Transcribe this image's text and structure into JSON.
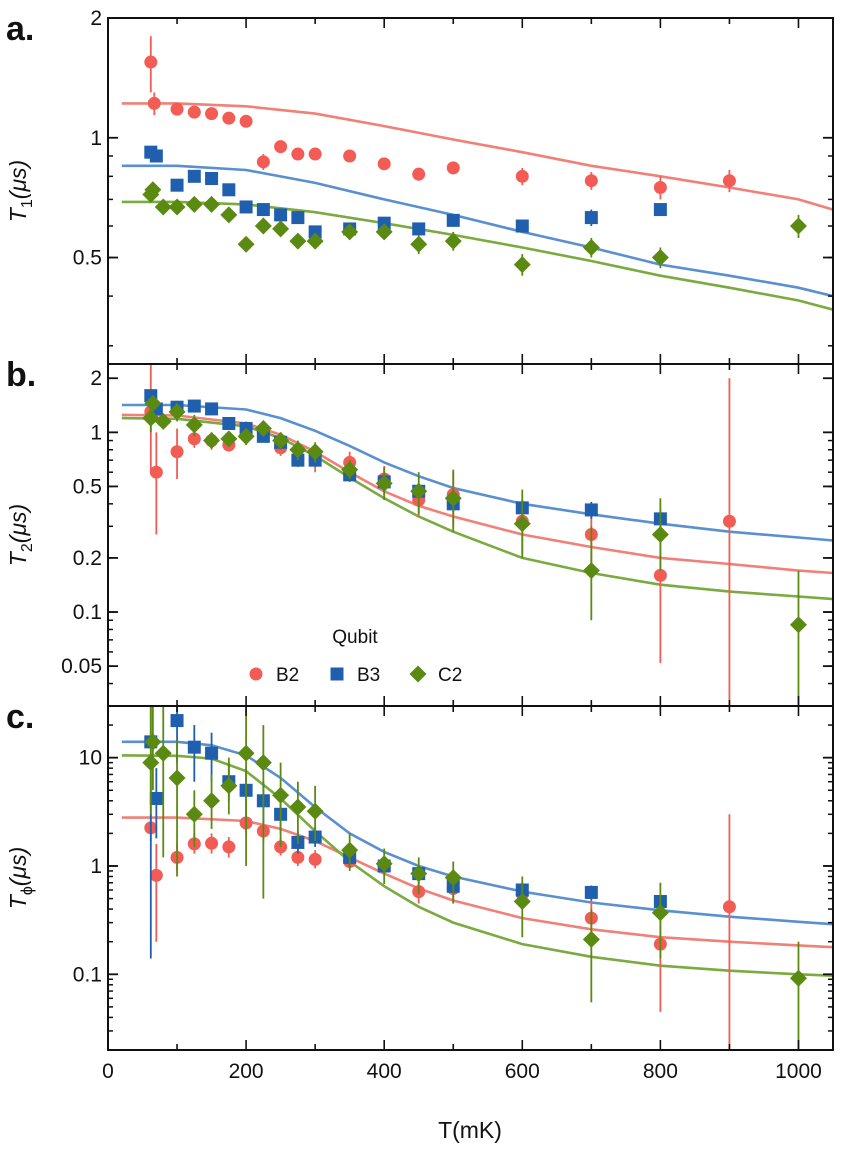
{
  "colors": {
    "B2": "#f25c54",
    "B3": "#1f5fae",
    "C2": "#5b8a13",
    "fit_B2": "#f08078",
    "fit_B3": "#5a8fd0",
    "fit_C2": "#7aaa40"
  },
  "legend": {
    "title": "Qubit",
    "entries": [
      "B2",
      "B3",
      "C2"
    ],
    "placement": "bottom-center of panel b"
  },
  "xaxis": {
    "label": "T(mK)",
    "ticks": [
      0,
      200,
      400,
      600,
      800,
      1000
    ],
    "tick_labels": [
      "0",
      "200",
      "400",
      "600",
      "800",
      "1000"
    ],
    "range": [
      0,
      1050
    ]
  },
  "chart_data": [
    {
      "panel": "a.",
      "type": "scatter",
      "ylabel_symbol": "T",
      "ylabel_sub": "1",
      "ylabel_unit": "(μs)",
      "yscale": "log",
      "ylim": [
        0.27,
        2.0
      ],
      "yticks": [
        0.5,
        1,
        2
      ],
      "ytick_labels": [
        "0.5",
        "1",
        "2"
      ],
      "series": [
        {
          "name": "B2",
          "marker": "circle",
          "x": [
            62,
            67,
            100,
            125,
            150,
            175,
            200,
            225,
            250,
            275,
            300,
            350,
            400,
            450,
            500,
            600,
            700,
            800,
            900
          ],
          "y": [
            1.55,
            1.22,
            1.18,
            1.16,
            1.15,
            1.12,
            1.1,
            0.87,
            0.95,
            0.91,
            0.91,
            0.9,
            0.86,
            0.81,
            0.84,
            0.8,
            0.78,
            0.75,
            0.78
          ],
          "err": [
            0.25,
            0.08,
            0.04,
            0.03,
            0.03,
            0.03,
            0.03,
            0.04,
            0.03,
            0.03,
            0.03,
            0.03,
            0.03,
            0.03,
            0.03,
            0.04,
            0.04,
            0.05,
            0.05
          ]
        },
        {
          "name": "B3",
          "marker": "square",
          "x": [
            62,
            70,
            100,
            125,
            150,
            175,
            200,
            225,
            250,
            275,
            300,
            350,
            400,
            450,
            500,
            600,
            700,
            800
          ],
          "y": [
            0.92,
            0.9,
            0.76,
            0.8,
            0.79,
            0.74,
            0.67,
            0.66,
            0.64,
            0.63,
            0.58,
            0.59,
            0.61,
            0.59,
            0.62,
            0.6,
            0.63,
            0.66
          ],
          "err": [
            0.02,
            0.02,
            0.02,
            0.02,
            0.02,
            0.02,
            0.02,
            0.02,
            0.02,
            0.02,
            0.02,
            0.02,
            0.02,
            0.02,
            0.02,
            0.02,
            0.03,
            0.02
          ]
        },
        {
          "name": "C2",
          "marker": "diamond",
          "x": [
            62,
            65,
            80,
            100,
            125,
            150,
            175,
            200,
            225,
            250,
            275,
            300,
            350,
            400,
            450,
            500,
            600,
            700,
            800,
            1000
          ],
          "y": [
            0.72,
            0.74,
            0.67,
            0.67,
            0.68,
            0.68,
            0.64,
            0.54,
            0.6,
            0.59,
            0.55,
            0.55,
            0.58,
            0.58,
            0.54,
            0.55,
            0.48,
            0.53,
            0.5,
            0.6
          ],
          "err": [
            0.02,
            0.02,
            0.02,
            0.02,
            0.02,
            0.02,
            0.02,
            0.02,
            0.02,
            0.02,
            0.02,
            0.02,
            0.02,
            0.02,
            0.03,
            0.03,
            0.03,
            0.03,
            0.03,
            0.04
          ]
        }
      ],
      "fits": [
        {
          "name": "B2",
          "x": [
            20,
            100,
            200,
            300,
            400,
            500,
            600,
            700,
            800,
            900,
            1000,
            1050
          ],
          "y": [
            1.22,
            1.22,
            1.2,
            1.15,
            1.07,
            0.99,
            0.92,
            0.85,
            0.8,
            0.75,
            0.7,
            0.66
          ]
        },
        {
          "name": "B3",
          "x": [
            20,
            100,
            200,
            300,
            400,
            500,
            600,
            700,
            800,
            900,
            1000,
            1050
          ],
          "y": [
            0.85,
            0.85,
            0.83,
            0.77,
            0.7,
            0.64,
            0.58,
            0.53,
            0.48,
            0.45,
            0.42,
            0.4
          ]
        },
        {
          "name": "C2",
          "x": [
            20,
            100,
            200,
            300,
            400,
            500,
            600,
            700,
            800,
            900,
            1000,
            1050
          ],
          "y": [
            0.69,
            0.69,
            0.68,
            0.65,
            0.61,
            0.57,
            0.53,
            0.49,
            0.45,
            0.42,
            0.39,
            0.37
          ]
        }
      ]
    },
    {
      "panel": "b.",
      "type": "scatter",
      "ylabel_symbol": "T",
      "ylabel_sub": "2",
      "ylabel_unit": "(μs)",
      "yscale": "log",
      "ylim": [
        0.03,
        2.4
      ],
      "yticks": [
        0.05,
        0.1,
        0.2,
        0.5,
        1,
        2
      ],
      "ytick_labels": [
        "0.05",
        "0.1",
        "0.2",
        "0.5",
        "1",
        "2"
      ],
      "series": [
        {
          "name": "B2",
          "marker": "circle",
          "x": [
            62,
            70,
            100,
            125,
            150,
            175,
            200,
            225,
            250,
            275,
            300,
            350,
            400,
            450,
            500,
            600,
            700,
            800,
            900
          ],
          "y": [
            1.3,
            0.6,
            0.78,
            0.92,
            0.9,
            0.85,
            1.05,
            1.0,
            0.82,
            0.72,
            0.7,
            0.68,
            0.55,
            0.42,
            0.45,
            0.32,
            0.27,
            0.16,
            0.32
          ],
          "elo": [
            0.6,
            0.27,
            0.55,
            0.82,
            0.8,
            0.78,
            0.95,
            0.9,
            0.74,
            0.64,
            0.6,
            0.58,
            0.45,
            0.34,
            0.3,
            0.21,
            0.16,
            0.052,
            0.03
          ],
          "ehi": [
            2.4,
            1.0,
            1.05,
            1.02,
            1.0,
            0.95,
            1.15,
            1.1,
            0.9,
            0.8,
            0.8,
            0.78,
            0.65,
            0.5,
            0.6,
            0.42,
            0.36,
            0.26,
            2.0
          ]
        },
        {
          "name": "B3",
          "marker": "square",
          "x": [
            62,
            70,
            100,
            125,
            150,
            175,
            200,
            225,
            250,
            275,
            300,
            350,
            400,
            450,
            500,
            600,
            700,
            800
          ],
          "y": [
            1.6,
            1.35,
            1.38,
            1.4,
            1.35,
            1.12,
            1.05,
            0.95,
            0.88,
            0.7,
            0.7,
            0.58,
            0.53,
            0.47,
            0.4,
            0.38,
            0.37,
            0.33
          ],
          "elo": [
            1.5,
            1.28,
            1.32,
            1.34,
            1.29,
            1.06,
            0.99,
            0.89,
            0.82,
            0.65,
            0.65,
            0.53,
            0.49,
            0.43,
            0.36,
            0.34,
            0.33,
            0.29
          ],
          "ehi": [
            1.72,
            1.42,
            1.44,
            1.46,
            1.41,
            1.18,
            1.11,
            1.01,
            0.94,
            0.75,
            0.75,
            0.63,
            0.57,
            0.51,
            0.44,
            0.42,
            0.41,
            0.37
          ]
        },
        {
          "name": "C2",
          "marker": "diamond",
          "x": [
            62,
            65,
            80,
            100,
            125,
            150,
            175,
            200,
            225,
            250,
            275,
            300,
            350,
            400,
            450,
            500,
            600,
            700,
            800,
            1000
          ],
          "y": [
            1.2,
            1.45,
            1.15,
            1.3,
            1.1,
            0.9,
            0.92,
            0.95,
            1.05,
            0.9,
            0.8,
            0.78,
            0.62,
            0.52,
            0.47,
            0.43,
            0.31,
            0.17,
            0.27,
            0.085
          ],
          "elo": [
            1.0,
            1.3,
            1.05,
            1.15,
            0.95,
            0.82,
            0.85,
            0.85,
            0.95,
            0.8,
            0.7,
            0.68,
            0.55,
            0.42,
            0.35,
            0.28,
            0.2,
            0.09,
            0.17,
            0.03
          ],
          "ehi": [
            1.4,
            1.6,
            1.25,
            1.45,
            1.25,
            0.98,
            1.0,
            1.05,
            1.15,
            1.0,
            0.9,
            0.88,
            0.7,
            0.64,
            0.6,
            0.62,
            0.48,
            0.3,
            0.43,
            0.17
          ]
        }
      ],
      "fits": [
        {
          "name": "B2",
          "x": [
            20,
            100,
            200,
            250,
            300,
            350,
            400,
            450,
            500,
            600,
            700,
            800,
            900,
            1000,
            1050
          ],
          "y": [
            1.25,
            1.24,
            1.12,
            0.97,
            0.78,
            0.6,
            0.47,
            0.39,
            0.34,
            0.27,
            0.23,
            0.2,
            0.185,
            0.17,
            0.165
          ]
        },
        {
          "name": "B3",
          "x": [
            20,
            100,
            200,
            250,
            300,
            350,
            400,
            450,
            500,
            600,
            700,
            800,
            900,
            1000,
            1050
          ],
          "y": [
            1.42,
            1.42,
            1.34,
            1.2,
            1.02,
            0.84,
            0.68,
            0.57,
            0.49,
            0.4,
            0.35,
            0.31,
            0.28,
            0.26,
            0.25
          ]
        },
        {
          "name": "C2",
          "x": [
            20,
            100,
            200,
            250,
            300,
            350,
            400,
            450,
            500,
            600,
            700,
            800,
            900,
            1000,
            1050
          ],
          "y": [
            1.2,
            1.19,
            1.08,
            0.93,
            0.74,
            0.56,
            0.43,
            0.34,
            0.28,
            0.2,
            0.165,
            0.142,
            0.13,
            0.122,
            0.118
          ]
        }
      ]
    },
    {
      "panel": "c.",
      "type": "scatter",
      "ylabel_symbol": "T",
      "ylabel_sub": "ϕ",
      "ylabel_unit": "(μs)",
      "yscale": "log",
      "ylim": [
        0.02,
        30
      ],
      "yticks": [
        0.1,
        1,
        10
      ],
      "ytick_labels": [
        "0.1",
        "1",
        "10"
      ],
      "series": [
        {
          "name": "B2",
          "marker": "circle",
          "x": [
            62,
            70,
            100,
            125,
            150,
            175,
            200,
            225,
            250,
            275,
            300,
            350,
            400,
            450,
            500,
            600,
            700,
            800,
            900
          ],
          "y": [
            2.25,
            0.82,
            1.2,
            1.6,
            1.62,
            1.5,
            2.5,
            2.1,
            1.5,
            1.2,
            1.15,
            1.1,
            1.0,
            0.58,
            0.62,
            0.55,
            0.33,
            0.19,
            0.42
          ],
          "elo": [
            1.7,
            0.2,
            0.9,
            1.3,
            1.3,
            1.2,
            2.0,
            1.7,
            1.25,
            1.0,
            0.95,
            0.95,
            0.85,
            0.45,
            0.45,
            0.42,
            0.22,
            0.045,
            0.02
          ],
          "ehi": [
            3.0,
            1.6,
            1.6,
            2.0,
            2.0,
            1.85,
            3.1,
            2.6,
            1.8,
            1.45,
            1.4,
            1.3,
            1.2,
            0.75,
            0.85,
            0.7,
            0.48,
            0.4,
            3.0
          ]
        },
        {
          "name": "B3",
          "marker": "square",
          "x": [
            62,
            70,
            100,
            125,
            150,
            175,
            200,
            225,
            250,
            275,
            300,
            350,
            400,
            450,
            500,
            600,
            700,
            800
          ],
          "y": [
            14,
            4.2,
            22,
            12.5,
            11,
            6,
            5,
            4,
            3,
            1.65,
            1.85,
            1.2,
            1.0,
            0.85,
            0.65,
            0.6,
            0.57,
            0.47
          ],
          "elo": [
            0.14,
            1.8,
            9,
            6,
            6,
            4,
            3,
            2.5,
            2.0,
            1.3,
            1.5,
            1.0,
            0.85,
            0.72,
            0.55,
            0.5,
            0.48,
            0.4
          ],
          "ehi": [
            30,
            8,
            30,
            20,
            17,
            9,
            8,
            6,
            4.5,
            2.1,
            2.3,
            1.4,
            1.15,
            0.98,
            0.76,
            0.7,
            0.66,
            0.54
          ]
        },
        {
          "name": "C2",
          "marker": "diamond",
          "x": [
            62,
            65,
            80,
            100,
            125,
            150,
            175,
            200,
            225,
            250,
            275,
            300,
            350,
            400,
            450,
            500,
            600,
            700,
            800,
            1000
          ],
          "y": [
            9,
            14,
            11,
            6.5,
            3,
            4,
            5.5,
            11,
            9,
            4.5,
            3.5,
            3.2,
            1.4,
            1.05,
            0.85,
            0.78,
            0.47,
            0.21,
            0.37,
            0.092
          ],
          "elo": [
            3,
            5,
            1.2,
            0.8,
            1.5,
            2.2,
            3.0,
            1.0,
            0.5,
            1.5,
            1.6,
            1.7,
            0.9,
            0.68,
            0.55,
            0.45,
            0.22,
            0.055,
            0.14,
            0.02
          ],
          "ehi": [
            30,
            30,
            30,
            15,
            5,
            7,
            10,
            30,
            20,
            9,
            6,
            5.5,
            2.0,
            1.45,
            1.2,
            1.1,
            0.8,
            0.4,
            0.7,
            0.2
          ]
        }
      ],
      "fits": [
        {
          "name": "B2",
          "x": [
            20,
            100,
            200,
            250,
            300,
            350,
            400,
            450,
            500,
            600,
            700,
            800,
            900,
            1000,
            1050
          ],
          "y": [
            2.8,
            2.8,
            2.6,
            2.2,
            1.7,
            1.2,
            0.85,
            0.62,
            0.48,
            0.33,
            0.26,
            0.22,
            0.2,
            0.185,
            0.178
          ]
        },
        {
          "name": "B3",
          "x": [
            20,
            100,
            150,
            200,
            250,
            300,
            350,
            400,
            450,
            500,
            600,
            700,
            800,
            900,
            1000,
            1050
          ],
          "y": [
            14,
            14,
            13,
            10.5,
            6.5,
            3.5,
            2.0,
            1.35,
            1.0,
            0.8,
            0.58,
            0.46,
            0.39,
            0.34,
            0.305,
            0.29
          ]
        },
        {
          "name": "C2",
          "x": [
            20,
            100,
            150,
            200,
            250,
            300,
            350,
            400,
            450,
            500,
            600,
            700,
            800,
            900,
            1000,
            1050
          ],
          "y": [
            10.5,
            10.4,
            9.8,
            7.5,
            4.2,
            2.1,
            1.1,
            0.65,
            0.42,
            0.3,
            0.19,
            0.145,
            0.12,
            0.108,
            0.1,
            0.097
          ]
        }
      ]
    }
  ]
}
